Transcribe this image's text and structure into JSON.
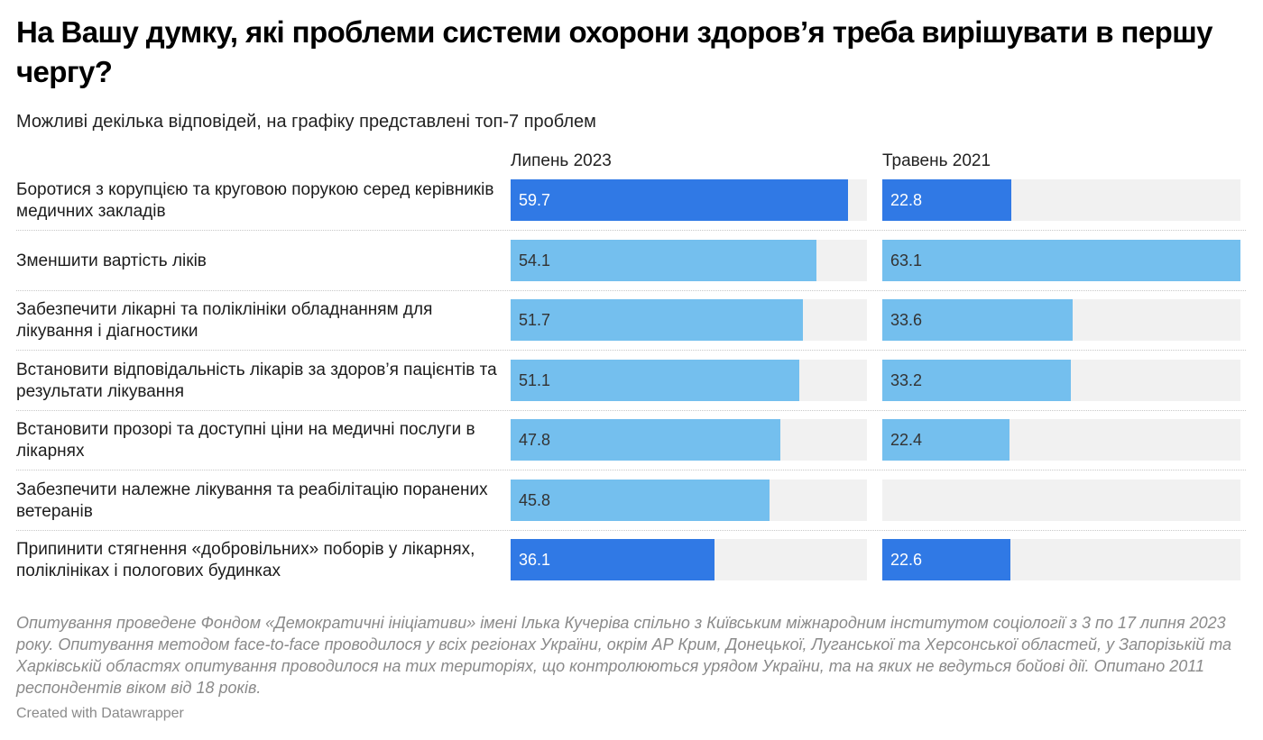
{
  "header": {
    "title": "На Вашу думку, які проблеми системи охорони здоров’я треба вирішувати в першу чергу?",
    "subtitle": "Можливі декілька відповідей, на графіку представлені топ-7 проблем"
  },
  "colors": {
    "highlight": "#3079e5",
    "regular": "#74bfee",
    "track": "#f1f1f1",
    "value_on_dark": "#ffffff",
    "value_on_light": "#333333"
  },
  "chart_data": {
    "type": "bar",
    "orientation": "horizontal",
    "title": "На Вашу думку, які проблеми системи охорони здоров’я треба вирішувати в першу чергу?",
    "subtitle": "Можливі декілька відповідей, на графіку представлені топ-7 проблем",
    "xlim": [
      0,
      63.1
    ],
    "grid": false,
    "categories": [
      "Боротися з корупцією та круговою порукою серед керівників медичних закладів",
      "Зменшити вартість ліків",
      "Забезпечити лікарні та поліклініки обладнанням для лікування і діагностики",
      "Встановити відповідальність лікарів за здоров’я пацієнтів та результати лікування",
      "Встановити прозорі та доступні ціни на медичні послуги в лікарнях",
      "Забезпечити належне лікування та реабілітацію поранених ветеранів",
      "Припинити стягнення «добровільних» поборів у лікарнях, поліклініках і пологових будинках"
    ],
    "highlighted": [
      true,
      false,
      false,
      false,
      false,
      false,
      true
    ],
    "series": [
      {
        "name": "Липень 2023",
        "values": [
          59.7,
          54.1,
          51.7,
          51.1,
          47.8,
          45.8,
          36.1
        ]
      },
      {
        "name": "Травень 2021",
        "values": [
          22.8,
          63.1,
          33.6,
          33.2,
          22.4,
          null,
          22.6
        ]
      }
    ]
  },
  "footer": {
    "note": "Опитування проведене Фондом «Демократичні ініціативи» імені Ілька Кучеріва спільно з Київським міжнародним інститутом соціології з 3 по 17 липня 2023 року. Опитування методом face-to-face проводилося у всіх регіонах України, окрім АР Крим, Донецької, Луганської та Херсонської областей, у Запорізькій та Харківській областях опитування проводилося на тих територіях, що контролюються урядом України, та на яких не ведуться бойові дії. Опитано 2011 респондентів віком від 18 років.",
    "credit": "Created with Datawrapper"
  }
}
